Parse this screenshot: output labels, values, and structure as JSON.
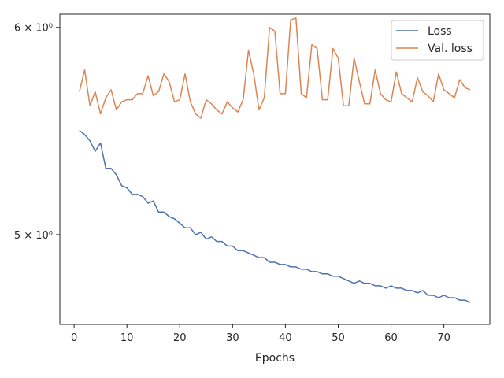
{
  "chart_data": {
    "type": "line",
    "title": "",
    "xlabel": "Epochs",
    "ylabel": "",
    "yscale": "log",
    "xlim": [
      -2.7,
      78.7
    ],
    "ylim": [
      4.62,
      6.07
    ],
    "grid": false,
    "legend_position": "top-right",
    "x_ticks": [
      0,
      10,
      20,
      30,
      40,
      50,
      60,
      70
    ],
    "x_tick_labels": [
      "0",
      "10",
      "20",
      "30",
      "40",
      "50",
      "60",
      "70"
    ],
    "y_ticks": [
      5,
      6
    ],
    "y_tick_labels": [
      "5 × 10⁰",
      "6 × 10⁰"
    ],
    "colors": {
      "Loss": "#4c72b0",
      "Val. loss": "#dd8452"
    },
    "x": [
      1,
      2,
      3,
      4,
      5,
      6,
      7,
      8,
      9,
      10,
      11,
      12,
      13,
      14,
      15,
      16,
      17,
      18,
      19,
      20,
      21,
      22,
      23,
      24,
      25,
      26,
      27,
      28,
      29,
      30,
      31,
      32,
      33,
      34,
      35,
      36,
      37,
      38,
      39,
      40,
      41,
      42,
      43,
      44,
      45,
      46,
      47,
      48,
      49,
      50,
      51,
      52,
      53,
      54,
      55,
      56,
      57,
      58,
      59,
      60,
      61,
      62,
      63,
      64,
      65,
      66,
      67,
      68,
      69,
      70,
      71,
      72,
      73,
      74,
      75
    ],
    "series": [
      {
        "name": "Loss",
        "values": [
          5.48,
          5.46,
          5.43,
          5.38,
          5.42,
          5.3,
          5.3,
          5.27,
          5.22,
          5.21,
          5.18,
          5.18,
          5.17,
          5.14,
          5.15,
          5.1,
          5.1,
          5.08,
          5.07,
          5.05,
          5.03,
          5.03,
          5.0,
          5.01,
          4.98,
          4.99,
          4.97,
          4.97,
          4.95,
          4.95,
          4.93,
          4.93,
          4.92,
          4.91,
          4.9,
          4.9,
          4.88,
          4.88,
          4.87,
          4.87,
          4.86,
          4.86,
          4.85,
          4.85,
          4.84,
          4.84,
          4.83,
          4.83,
          4.82,
          4.82,
          4.81,
          4.8,
          4.79,
          4.8,
          4.79,
          4.79,
          4.78,
          4.78,
          4.77,
          4.78,
          4.77,
          4.77,
          4.76,
          4.76,
          4.75,
          4.76,
          4.74,
          4.74,
          4.73,
          4.74,
          4.73,
          4.73,
          4.72,
          4.72,
          4.71
        ]
      },
      {
        "name": "Val. loss",
        "values": [
          5.67,
          5.78,
          5.6,
          5.67,
          5.56,
          5.64,
          5.68,
          5.58,
          5.62,
          5.63,
          5.63,
          5.66,
          5.66,
          5.75,
          5.65,
          5.67,
          5.76,
          5.72,
          5.62,
          5.63,
          5.76,
          5.62,
          5.56,
          5.54,
          5.63,
          5.61,
          5.58,
          5.56,
          5.62,
          5.59,
          5.57,
          5.63,
          5.88,
          5.76,
          5.58,
          5.64,
          6.0,
          5.98,
          5.66,
          5.66,
          6.04,
          6.05,
          5.66,
          5.64,
          5.91,
          5.89,
          5.63,
          5.63,
          5.89,
          5.84,
          5.6,
          5.6,
          5.84,
          5.72,
          5.61,
          5.61,
          5.78,
          5.66,
          5.63,
          5.62,
          5.77,
          5.66,
          5.64,
          5.62,
          5.74,
          5.67,
          5.65,
          5.62,
          5.76,
          5.68,
          5.66,
          5.64,
          5.73,
          5.69,
          5.68
        ]
      }
    ]
  }
}
